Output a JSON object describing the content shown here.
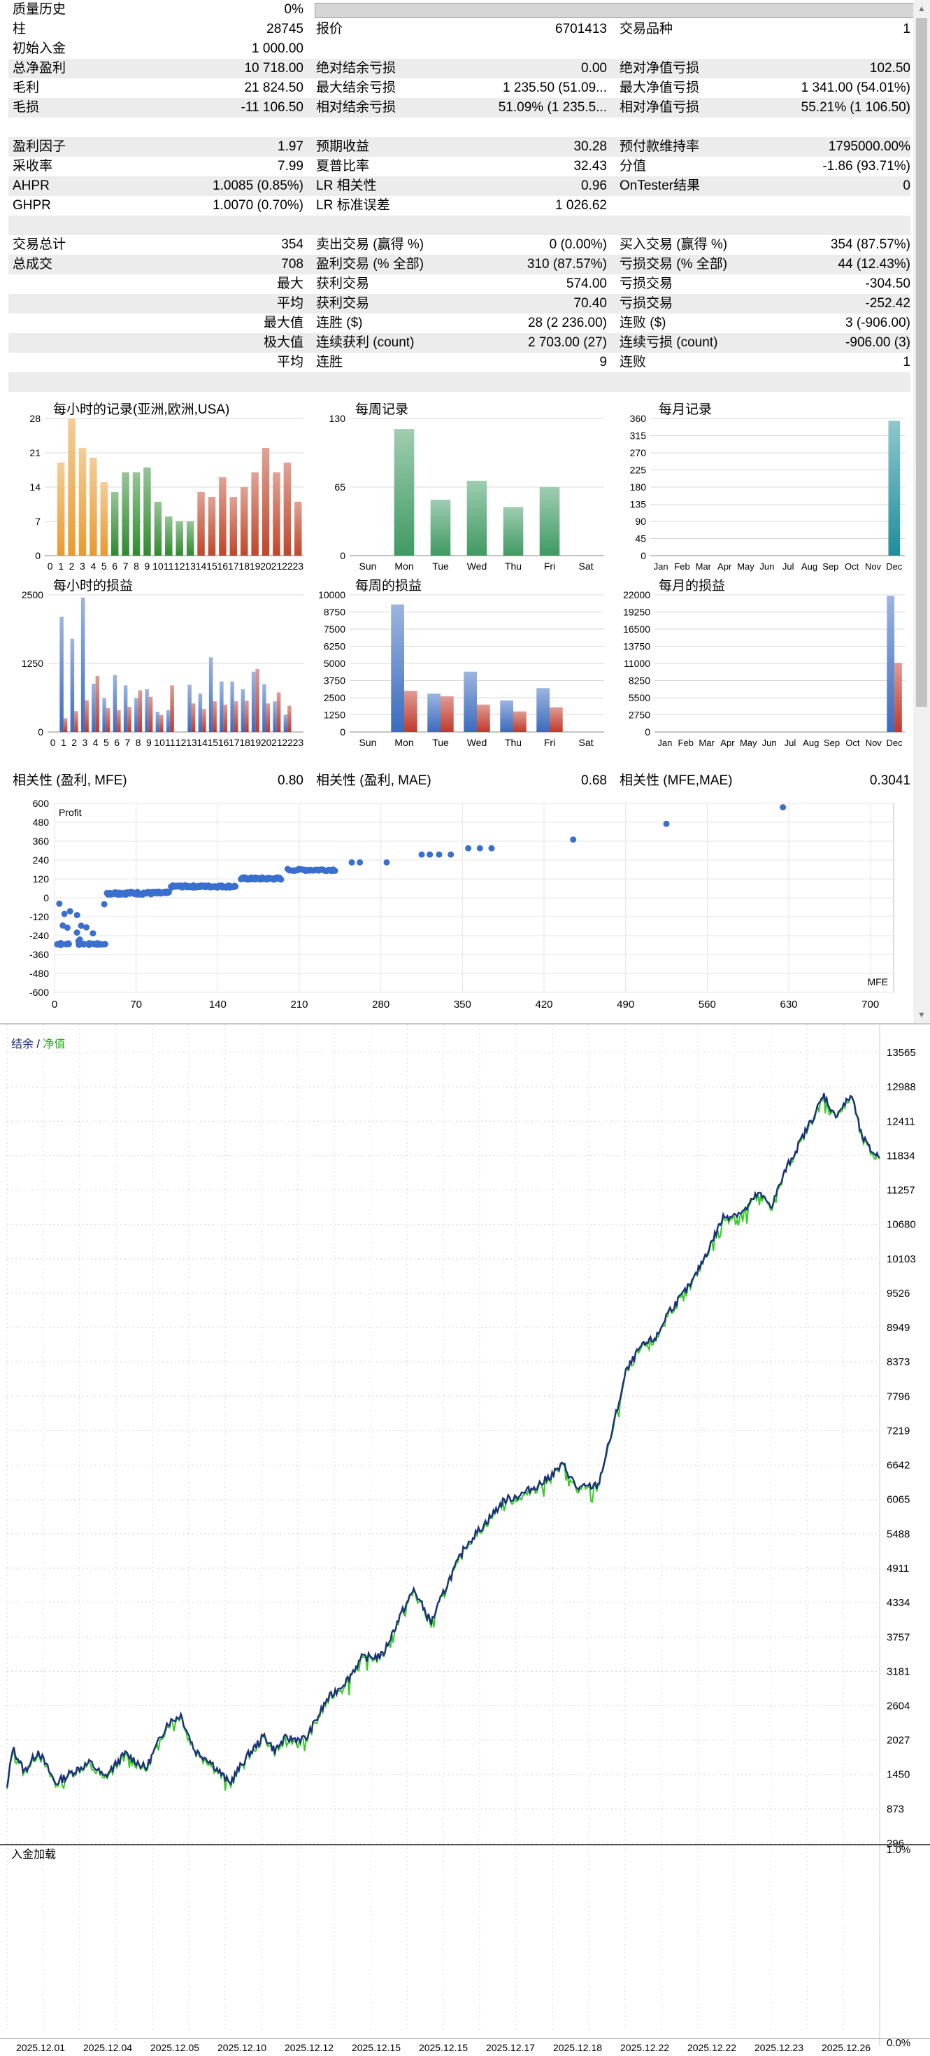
{
  "summary_rows": [
    {
      "type": "row",
      "shade": false,
      "l1": "质量历史",
      "v1": "0%",
      "bar": true
    },
    {
      "type": "row",
      "shade": false,
      "l1": "柱",
      "v1": "28745",
      "l2": "报价",
      "v2": "6701413",
      "l3": "交易品种",
      "v3": "1"
    },
    {
      "type": "row",
      "shade": false,
      "l1": "初始入金",
      "v1": "1 000.00"
    },
    {
      "type": "row",
      "shade": true,
      "l1": "总净盈利",
      "v1": "10 718.00",
      "l2": "绝对结余亏损",
      "v2": "0.00",
      "l3": "绝对净值亏损",
      "v3": "102.50"
    },
    {
      "type": "row",
      "shade": false,
      "l1": "毛利",
      "v1": "21 824.50",
      "l2": "最大结余亏损",
      "v2": "1 235.50 (51.09...",
      "l3": "最大净值亏损",
      "v3": "1 341.00 (54.01%)"
    },
    {
      "type": "row",
      "shade": true,
      "l1": "毛损",
      "v1": "-11 106.50",
      "l2": "相对结余亏损",
      "v2": "51.09% (1 235.5...",
      "l3": "相对净值亏损",
      "v3": "55.21% (1 106.50)"
    },
    {
      "type": "blank"
    },
    {
      "type": "row",
      "shade": true,
      "l1": "盈利因子",
      "v1": "1.97",
      "l2": "预期收益",
      "v2": "30.28",
      "l3": "预付款维持率",
      "v3": "1795000.00%"
    },
    {
      "type": "row",
      "shade": false,
      "l1": "采收率",
      "v1": "7.99",
      "l2": "夏普比率",
      "v2": "32.43",
      "l3": "分值",
      "v3": "-1.86 (93.71%)"
    },
    {
      "type": "row",
      "shade": true,
      "l1": "AHPR",
      "v1": "1.0085 (0.85%)",
      "l2": "LR 相关性",
      "v2": "0.96",
      "l3": "OnTester结果",
      "v3": "0"
    },
    {
      "type": "row",
      "shade": false,
      "l1": "GHPR",
      "v1": "1.0070 (0.70%)",
      "l2": "LR 标准误差",
      "v2": "1 026.62"
    },
    {
      "type": "blank",
      "shade": true
    },
    {
      "type": "row",
      "shade": false,
      "l1": "交易总计",
      "v1": "354",
      "l2": "卖出交易 (赢得 %)",
      "v2": "0 (0.00%)",
      "l3": "买入交易 (赢得 %)",
      "v3": "354 (87.57%)"
    },
    {
      "type": "row",
      "shade": true,
      "l1": "总成交",
      "v1": "708",
      "l2": "盈利交易 (% 全部)",
      "v2": "310 (87.57%)",
      "l3": "亏损交易 (% 全部)",
      "v3": "44 (12.43%)"
    },
    {
      "type": "row",
      "shade": false,
      "r1": "最大",
      "l2": "获利交易",
      "v2": "574.00",
      "l3": "亏损交易",
      "v3": "-304.50"
    },
    {
      "type": "row",
      "shade": true,
      "r1": "平均",
      "l2": "获利交易",
      "v2": "70.40",
      "l3": "亏损交易",
      "v3": "-252.42"
    },
    {
      "type": "row",
      "shade": false,
      "r1": "最大值",
      "l2": "连胜 ($)",
      "v2": "28 (2 236.00)",
      "l3": "连败 ($)",
      "v3": "3 (-906.00)"
    },
    {
      "type": "row",
      "shade": true,
      "r1": "极大值",
      "l2": "连续获利 (count)",
      "v2": "2 703.00 (27)",
      "l3": "连续亏损 (count)",
      "v3": "-906.00 (3)"
    },
    {
      "type": "row",
      "shade": false,
      "r1": "平均",
      "l2": "连胜",
      "v2": "9",
      "l3": "连败",
      "v3": "1"
    },
    {
      "type": "blank",
      "shade": true
    }
  ],
  "correlation_row": {
    "l1": "相关性 (盈利, MFE)",
    "v1": "0.80",
    "l2": "相关性 (盈利, MAE)",
    "v2": "0.68",
    "l3": "相关性 (MFE,MAE)",
    "v3": "0.3041"
  },
  "chart_data": [
    {
      "id": "hourly-records",
      "type": "bar",
      "title": "每小时的记录(亚洲,欧洲,USA)",
      "categories": [
        "0",
        "1",
        "2",
        "3",
        "4",
        "5",
        "6",
        "7",
        "8",
        "9",
        "10",
        "11",
        "12",
        "13",
        "14",
        "15",
        "16",
        "17",
        "18",
        "19",
        "20",
        "21",
        "22",
        "23"
      ],
      "values": [
        0,
        19,
        28,
        22,
        20,
        15,
        13,
        17,
        17,
        18,
        11,
        8,
        7,
        7,
        13,
        12,
        16,
        12,
        14,
        17,
        22,
        17,
        19,
        11
      ],
      "ylim": [
        0,
        28
      ],
      "yticks": [
        0,
        7,
        14,
        21,
        28
      ],
      "color_groups": [
        {
          "from": 0,
          "to": 5,
          "color": "#e89a30"
        },
        {
          "from": 6,
          "to": 10,
          "color": "#2f8a2f"
        },
        {
          "from": 11,
          "to": 13,
          "color": "#2f8a2f"
        },
        {
          "from": 14,
          "to": 23,
          "color": "#c0462a"
        }
      ]
    },
    {
      "id": "weekly-records",
      "type": "bar",
      "title": "每周记录",
      "categories": [
        "Sun",
        "Mon",
        "Tue",
        "Wed",
        "Thu",
        "Fri",
        "Sat"
      ],
      "values": [
        0,
        120,
        53,
        71,
        46,
        65,
        0
      ],
      "ylim": [
        0,
        130
      ],
      "yticks": [
        0,
        65,
        130
      ],
      "color": "#3f9a62"
    },
    {
      "id": "monthly-records",
      "type": "bar",
      "title": "每月记录",
      "categories": [
        "Jan",
        "Feb",
        "Mar",
        "Apr",
        "May",
        "Jun",
        "Jul",
        "Aug",
        "Sep",
        "Oct",
        "Nov",
        "Dec"
      ],
      "values": [
        0,
        0,
        0,
        0,
        0,
        0,
        0,
        0,
        0,
        0,
        0,
        354
      ],
      "ylim": [
        0,
        360
      ],
      "yticks": [
        0,
        45,
        90,
        135,
        180,
        225,
        270,
        315,
        360
      ],
      "color": "#1f8e9a"
    },
    {
      "id": "hourly-pnl",
      "type": "grouped-bar",
      "title": "每小时的损益",
      "categories": [
        "0",
        "1",
        "2",
        "3",
        "4",
        "5",
        "6",
        "7",
        "8",
        "9",
        "10",
        "11",
        "12",
        "13",
        "14",
        "15",
        "16",
        "17",
        "18",
        "19",
        "20",
        "21",
        "22",
        "23"
      ],
      "series": [
        {
          "name": "profit",
          "color": "#3b6bbf",
          "values": [
            0,
            2100,
            1700,
            2450,
            880,
            620,
            1040,
            850,
            620,
            780,
            370,
            400,
            0,
            860,
            700,
            1360,
            920,
            920,
            780,
            1100,
            870,
            560,
            320,
            0
          ]
        },
        {
          "name": "loss",
          "color": "#c0392b",
          "values": [
            0,
            250,
            380,
            580,
            1020,
            440,
            400,
            460,
            760,
            640,
            310,
            850,
            0,
            520,
            420,
            560,
            500,
            560,
            570,
            1150,
            520,
            720,
            480,
            0
          ]
        }
      ],
      "ylim": [
        0,
        2500
      ],
      "yticks": [
        0,
        1250,
        2500
      ]
    },
    {
      "id": "weekly-pnl",
      "type": "grouped-bar",
      "title": "每周的损益",
      "categories": [
        "Sun",
        "Mon",
        "Tue",
        "Wed",
        "Thu",
        "Fri",
        "Sat"
      ],
      "series": [
        {
          "name": "profit",
          "color": "#3b6bbf",
          "values": [
            0,
            9300,
            2800,
            4400,
            2300,
            3200,
            0
          ]
        },
        {
          "name": "loss",
          "color": "#c0392b",
          "values": [
            0,
            3000,
            2600,
            2000,
            1500,
            1800,
            0
          ]
        }
      ],
      "ylim": [
        0,
        10000
      ],
      "yticks": [
        0,
        1250,
        2500,
        3750,
        5000,
        6250,
        7500,
        8750,
        10000
      ]
    },
    {
      "id": "monthly-pnl",
      "type": "grouped-bar",
      "title": "每月的损益",
      "categories": [
        "Jan",
        "Feb",
        "Mar",
        "Apr",
        "May",
        "Jun",
        "Jul",
        "Aug",
        "Sep",
        "Oct",
        "Nov",
        "Dec"
      ],
      "series": [
        {
          "name": "profit",
          "color": "#3b6bbf",
          "values": [
            0,
            0,
            0,
            0,
            0,
            0,
            0,
            0,
            0,
            0,
            0,
            21824.5
          ]
        },
        {
          "name": "loss",
          "color": "#c0392b",
          "values": [
            0,
            0,
            0,
            0,
            0,
            0,
            0,
            0,
            0,
            0,
            0,
            11106.5
          ]
        }
      ],
      "ylim": [
        0,
        22000
      ],
      "yticks": [
        0,
        2750,
        5500,
        8250,
        11000,
        13750,
        16500,
        19250,
        22000
      ]
    },
    {
      "id": "mfe-scatter",
      "type": "scatter",
      "ylabel": "Profit",
      "xlabel": "MFE",
      "xlim": [
        0,
        720
      ],
      "ylim": [
        -600,
        600
      ],
      "xticks": [
        0,
        70,
        140,
        210,
        280,
        350,
        420,
        490,
        560,
        630,
        700
      ],
      "yticks": [
        600,
        480,
        360,
        240,
        120,
        0,
        -120,
        -240,
        -360,
        -480,
        -600
      ],
      "color": "#3a6fce"
    },
    {
      "id": "balance-equity",
      "type": "line",
      "legend": [
        "结余",
        "净值"
      ],
      "legend_sep": " / ",
      "series_colors": {
        "balance": "#1d2f7a",
        "equity": "#33cc22"
      },
      "ylim": [
        296,
        13800
      ],
      "yticks": [
        13565,
        12988,
        12411,
        11834,
        11257,
        10680,
        10103,
        9526,
        8949,
        8373,
        7796,
        7219,
        6642,
        6065,
        5488,
        4911,
        4334,
        3757,
        3181,
        2604,
        2027,
        1450,
        873,
        296
      ],
      "x_labels": [
        "2025.12.01",
        "2025.12.04",
        "2025.12.05",
        "2025.12.10",
        "2025.12.12",
        "2025.12.15",
        "2025.12.15",
        "2025.12.17",
        "2025.12.18",
        "2025.12.22",
        "2025.12.22",
        "2025.12.23",
        "2025.12.26"
      ],
      "keypoints": [
        [
          0,
          1200
        ],
        [
          8,
          1900
        ],
        [
          25,
          1500
        ],
        [
          45,
          1850
        ],
        [
          70,
          1300
        ],
        [
          95,
          1500
        ],
        [
          120,
          1650
        ],
        [
          140,
          1400
        ],
        [
          170,
          1800
        ],
        [
          200,
          1550
        ],
        [
          230,
          2300
        ],
        [
          250,
          2450
        ],
        [
          270,
          1850
        ],
        [
          290,
          1700
        ],
        [
          320,
          1300
        ],
        [
          345,
          1750
        ],
        [
          370,
          2100
        ],
        [
          385,
          1850
        ],
        [
          400,
          2050
        ],
        [
          430,
          2050
        ],
        [
          460,
          2700
        ],
        [
          490,
          3050
        ],
        [
          510,
          3400
        ],
        [
          540,
          3450
        ],
        [
          565,
          4100
        ],
        [
          585,
          4550
        ],
        [
          610,
          4000
        ],
        [
          635,
          4700
        ],
        [
          660,
          5300
        ],
        [
          690,
          5700
        ],
        [
          715,
          6050
        ],
        [
          740,
          6150
        ],
        [
          770,
          6350
        ],
        [
          800,
          6650
        ],
        [
          820,
          6250
        ],
        [
          850,
          6300
        ],
        [
          870,
          7200
        ],
        [
          890,
          8200
        ],
        [
          910,
          8600
        ],
        [
          935,
          8800
        ],
        [
          950,
          9200
        ],
        [
          965,
          9400
        ],
        [
          985,
          9700
        ],
        [
          1010,
          10300
        ],
        [
          1030,
          10800
        ],
        [
          1060,
          10900
        ],
        [
          1080,
          11200
        ],
        [
          1100,
          11000
        ],
        [
          1120,
          11600
        ],
        [
          1140,
          12050
        ],
        [
          1160,
          12500
        ],
        [
          1175,
          12850
        ],
        [
          1190,
          12500
        ],
        [
          1205,
          12700
        ],
        [
          1215,
          12850
        ],
        [
          1228,
          12200
        ],
        [
          1240,
          11950
        ],
        [
          1255,
          11800
        ]
      ],
      "deposit_label": "入金加载",
      "deposit_yticks": [
        "1.0%",
        "0.0%"
      ]
    }
  ]
}
